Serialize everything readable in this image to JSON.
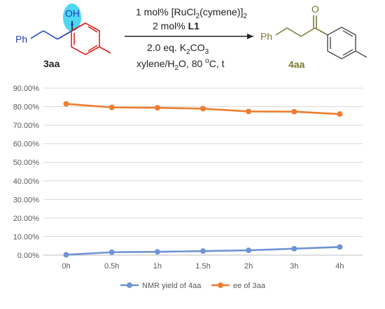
{
  "scheme": {
    "reactant_label": "3aa",
    "product_label": "4aa",
    "reactant_ph": "Ph",
    "product_ph": "Ph",
    "oh": "OH",
    "ketone_o": "O",
    "catalyst_prefix": "1 mol% [RuCl",
    "catalyst_sub1": "2",
    "catalyst_mid": "(cymene)]",
    "catalyst_sub2": "2",
    "ligand_prefix": "2 mol% ",
    "ligand": "L1",
    "base_prefix": "2.0 eq. K",
    "base_sub1": "2",
    "base_mid": "CO",
    "base_sub2": "3",
    "solvent_prefix": "xylene/H",
    "solvent_sub": "2",
    "solvent_mid": "O, 80 ",
    "solvent_sup": "o",
    "solvent_suffix": "C, t",
    "colors": {
      "blue": "#1f3fbf",
      "red": "#e0201c",
      "olive": "#7a7a32",
      "highlight": "#2fd0f0"
    }
  },
  "chart_data": {
    "type": "line",
    "categories": [
      "0h",
      "0.5h",
      "1h",
      "1.5h",
      "2h",
      "3h",
      "4h"
    ],
    "series": [
      {
        "name": "NMR yield of 4aa",
        "color": "#6f93d6",
        "values": [
          0.2,
          1.6,
          1.8,
          2.2,
          2.6,
          3.5,
          4.4
        ]
      },
      {
        "name": "ee of 3aa",
        "color": "#ed7d31",
        "values": [
          81.5,
          79.6,
          79.4,
          78.9,
          77.4,
          77.3,
          76.0
        ]
      }
    ],
    "y_ticks": [
      "0.00%",
      "10.00%",
      "20.00%",
      "30.00%",
      "40.00%",
      "50.00%",
      "60.00%",
      "70.00%",
      "80.00%",
      "90.00%"
    ],
    "ylim": [
      0,
      90
    ],
    "grid": true,
    "legend": "bottom"
  }
}
